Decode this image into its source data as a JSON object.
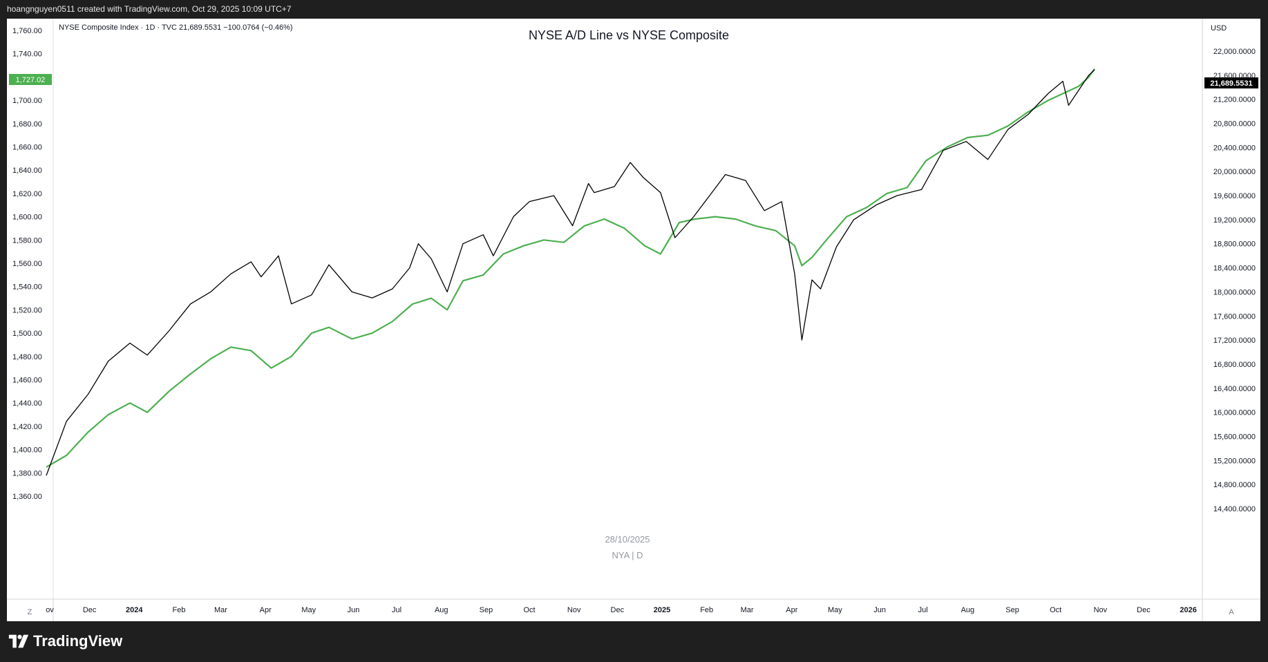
{
  "header": {
    "credit": "hoangnguyen0511 created with TradingView.com, Oct 29, 2025 10:09 UTC+7"
  },
  "legend": {
    "symbol_info": "NYSE Composite Index · 1D · TVC  21,689.5531  −100.0764 (−0.46%)"
  },
  "chart_title": "NYSE A/D Line vs NYSE Composite",
  "watermark": {
    "date": "28/10/2025",
    "ticker": "NYA | D"
  },
  "left_axis": {
    "ticks": [
      "1,760.00",
      "1,740.00",
      "1,720.00",
      "1,700.00",
      "1,680.00",
      "1,660.00",
      "1,640.00",
      "1,620.00",
      "1,600.00",
      "1,580.00",
      "1,560.00",
      "1,540.00",
      "1,520.00",
      "1,500.00",
      "1,480.00",
      "1,460.00",
      "1,440.00",
      "1,420.00",
      "1,400.00",
      "1,380.00",
      "1,360.00"
    ],
    "last_value_label": "1,727.02"
  },
  "right_axis": {
    "currency": "USD",
    "ticks": [
      "22,000.0000",
      "21,600.0000",
      "21,200.0000",
      "20,800.0000",
      "20,400.0000",
      "20,000.0000",
      "19,600.0000",
      "19,200.0000",
      "18,800.0000",
      "18,400.0000",
      "18,000.0000",
      "17,600.0000",
      "17,200.0000",
      "16,800.0000",
      "16,400.0000",
      "16,000.0000",
      "15,600.0000",
      "15,200.0000",
      "14,800.0000",
      "14,400.0000"
    ],
    "last_value_label": "21,689.5531"
  },
  "x_axis": {
    "labels": [
      "ov",
      "Dec",
      "2024",
      "Feb",
      "Mar",
      "Apr",
      "May",
      "Jun",
      "Jul",
      "Aug",
      "Sep",
      "Oct",
      "Nov",
      "Dec",
      "2025",
      "Feb",
      "Mar",
      "Apr",
      "May",
      "Jun",
      "Jul",
      "Aug",
      "Sep",
      "Oct",
      "Nov",
      "Dec",
      "2026"
    ],
    "bold_labels": [
      "2024",
      "2025",
      "2026"
    ]
  },
  "corner_buttons": {
    "left": "Z",
    "right": "A"
  },
  "brand": {
    "name": "TradingView"
  },
  "colors": {
    "composite": "#000000",
    "ad_line": "#4caf50",
    "background": "#ffffff",
    "frame": "#1f1f1f"
  },
  "chart_data": {
    "type": "line",
    "title": "NYSE A/D Line vs NYSE Composite",
    "x_range": [
      "2023-11-01",
      "2025-10-28"
    ],
    "left_ylim": [
      1350,
      1770
    ],
    "right_ylim": [
      14300,
      22300
    ],
    "grid": false,
    "series": [
      {
        "name": "NYSE Composite Index",
        "axis": "right",
        "color": "#000000",
        "x": [
          "2023-11-01",
          "2023-11-15",
          "2023-11-30",
          "2023-12-14",
          "2023-12-29",
          "2024-01-10",
          "2024-01-25",
          "2024-02-09",
          "2024-02-23",
          "2024-03-08",
          "2024-03-22",
          "2024-03-29",
          "2024-04-10",
          "2024-04-19",
          "2024-05-03",
          "2024-05-15",
          "2024-05-31",
          "2024-06-14",
          "2024-06-28",
          "2024-07-10",
          "2024-07-16",
          "2024-07-25",
          "2024-08-05",
          "2024-08-16",
          "2024-08-30",
          "2024-09-06",
          "2024-09-20",
          "2024-10-01",
          "2024-10-18",
          "2024-10-31",
          "2024-11-11",
          "2024-11-15",
          "2024-11-29",
          "2024-12-10",
          "2024-12-19",
          "2024-12-31",
          "2025-01-10",
          "2025-01-23",
          "2025-02-03",
          "2025-02-14",
          "2025-02-28",
          "2025-03-13",
          "2025-03-25",
          "2025-04-03",
          "2025-04-08",
          "2025-04-15",
          "2025-04-21",
          "2025-05-02",
          "2025-05-14",
          "2025-05-30",
          "2025-06-13",
          "2025-06-30",
          "2025-07-15",
          "2025-07-31",
          "2025-08-15",
          "2025-08-29",
          "2025-09-12",
          "2025-09-26",
          "2025-10-06",
          "2025-10-10",
          "2025-10-17",
          "2025-10-24",
          "2025-10-28"
        ],
        "values": [
          14950,
          15850,
          16300,
          16850,
          17150,
          16950,
          17350,
          17800,
          18000,
          18300,
          18500,
          18250,
          18600,
          17800,
          17950,
          18450,
          18000,
          17900,
          18050,
          18400,
          18800,
          18550,
          18000,
          18800,
          18950,
          18600,
          19250,
          19500,
          19600,
          19100,
          19800,
          19650,
          19750,
          20150,
          19900,
          19650,
          18900,
          19250,
          19600,
          19950,
          19850,
          19350,
          19500,
          18300,
          17200,
          18200,
          18050,
          18750,
          19200,
          19450,
          19600,
          19700,
          20350,
          20500,
          20200,
          20700,
          20950,
          21300,
          21500,
          21100,
          21350,
          21600,
          21690
        ]
      },
      {
        "name": "NYSE A/D Line",
        "axis": "left",
        "color": "#4caf50",
        "x": [
          "2023-11-01",
          "2023-11-15",
          "2023-11-30",
          "2023-12-14",
          "2023-12-29",
          "2024-01-10",
          "2024-01-25",
          "2024-02-09",
          "2024-02-23",
          "2024-03-08",
          "2024-03-22",
          "2024-04-05",
          "2024-04-19",
          "2024-05-03",
          "2024-05-15",
          "2024-05-31",
          "2024-06-14",
          "2024-06-28",
          "2024-07-12",
          "2024-07-25",
          "2024-08-05",
          "2024-08-16",
          "2024-08-30",
          "2024-09-13",
          "2024-09-27",
          "2024-10-11",
          "2024-10-25",
          "2024-11-08",
          "2024-11-22",
          "2024-12-06",
          "2024-12-20",
          "2024-12-31",
          "2025-01-13",
          "2025-01-24",
          "2025-02-07",
          "2025-02-21",
          "2025-03-07",
          "2025-03-21",
          "2025-04-03",
          "2025-04-08",
          "2025-04-15",
          "2025-04-25",
          "2025-05-09",
          "2025-05-23",
          "2025-06-06",
          "2025-06-20",
          "2025-07-03",
          "2025-07-18",
          "2025-08-01",
          "2025-08-15",
          "2025-08-29",
          "2025-09-12",
          "2025-09-26",
          "2025-10-10",
          "2025-10-17",
          "2025-10-24",
          "2025-10-28"
        ],
        "values": [
          1385,
          1395,
          1415,
          1430,
          1440,
          1432,
          1450,
          1465,
          1478,
          1488,
          1485,
          1470,
          1480,
          1500,
          1505,
          1495,
          1500,
          1510,
          1525,
          1530,
          1520,
          1545,
          1550,
          1568,
          1575,
          1580,
          1578,
          1592,
          1598,
          1590,
          1575,
          1568,
          1595,
          1598,
          1600,
          1598,
          1592,
          1588,
          1575,
          1558,
          1565,
          1580,
          1600,
          1608,
          1620,
          1625,
          1648,
          1660,
          1668,
          1670,
          1678,
          1690,
          1700,
          1708,
          1712,
          1720,
          1727
        ]
      }
    ]
  }
}
